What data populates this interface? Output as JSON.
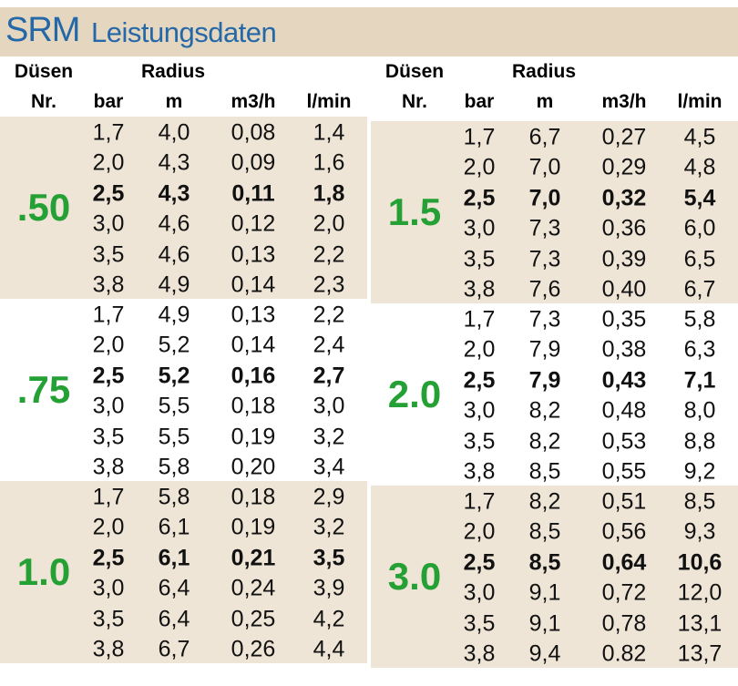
{
  "title": {
    "main": "SRM",
    "sub": "Leistungsdaten"
  },
  "panels": [
    {
      "header": {
        "duesen": "Düsen",
        "radius": "Radius",
        "nr": "Nr.",
        "bar": "bar",
        "m": "m",
        "m3h": "m3/h",
        "lmin": "l/min"
      },
      "groups": [
        {
          "nozzle": ".50",
          "rows": [
            [
              "1,7",
              "4,0",
              "0,08",
              "1,4"
            ],
            [
              "2,0",
              "4,3",
              "0,09",
              "1,6"
            ],
            [
              "2,5",
              "4,3",
              "0,11",
              "1,8"
            ],
            [
              "3,0",
              "4,6",
              "0,12",
              "2,0"
            ],
            [
              "3,5",
              "4,6",
              "0,13",
              "2,2"
            ],
            [
              "3,8",
              "4,9",
              "0,14",
              "2,3"
            ]
          ]
        },
        {
          "nozzle": ".75",
          "rows": [
            [
              "1,7",
              "4,9",
              "0,13",
              "2,2"
            ],
            [
              "2,0",
              "5,2",
              "0,14",
              "2,4"
            ],
            [
              "2,5",
              "5,2",
              "0,16",
              "2,7"
            ],
            [
              "3,0",
              "5,5",
              "0,18",
              "3,0"
            ],
            [
              "3,5",
              "5,5",
              "0,19",
              "3,2"
            ],
            [
              "3,8",
              "5,8",
              "0,20",
              "3,4"
            ]
          ]
        },
        {
          "nozzle": "1.0",
          "rows": [
            [
              "1,7",
              "5,8",
              "0,18",
              "2,9"
            ],
            [
              "2,0",
              "6,1",
              "0,19",
              "3,2"
            ],
            [
              "2,5",
              "6,1",
              "0,21",
              "3,5"
            ],
            [
              "3,0",
              "6,4",
              "0,24",
              "3,9"
            ],
            [
              "3,5",
              "6,4",
              "0,25",
              "4,2"
            ],
            [
              "3,8",
              "6,7",
              "0,26",
              "4,4"
            ]
          ]
        }
      ]
    },
    {
      "header": {
        "duesen": "Düsen",
        "radius": "Radius",
        "nr": "Nr.",
        "bar": "bar",
        "m": "m",
        "m3h": "m3/h",
        "lmin": "l/min"
      },
      "groups": [
        {
          "nozzle": "1.5",
          "rows": [
            [
              "1,7",
              "6,7",
              "0,27",
              "4,5"
            ],
            [
              "2,0",
              "7,0",
              "0,29",
              "4,8"
            ],
            [
              "2,5",
              "7,0",
              "0,32",
              "5,4"
            ],
            [
              "3,0",
              "7,3",
              "0,36",
              "6,0"
            ],
            [
              "3,5",
              "7,3",
              "0,39",
              "6,5"
            ],
            [
              "3,8",
              "7,6",
              "0,40",
              "6,7"
            ]
          ]
        },
        {
          "nozzle": "2.0",
          "rows": [
            [
              "1,7",
              "7,3",
              "0,35",
              "5,8"
            ],
            [
              "2,0",
              "7,9",
              "0,38",
              "6,3"
            ],
            [
              "2,5",
              "7,9",
              "0,43",
              "7,1"
            ],
            [
              "3,0",
              "8,2",
              "0,48",
              "8,0"
            ],
            [
              "3,5",
              "8,2",
              "0,53",
              "8,8"
            ],
            [
              "3,8",
              "8,5",
              "0,55",
              "9,2"
            ]
          ]
        },
        {
          "nozzle": "3.0",
          "rows": [
            [
              "1,7",
              "8,2",
              "0,51",
              "8,5"
            ],
            [
              "2,0",
              "8,5",
              "0,56",
              "9,3"
            ],
            [
              "2,5",
              "8,5",
              "0,64",
              "10,6"
            ],
            [
              "3,0",
              "9,1",
              "0,72",
              "12,0"
            ],
            [
              "3,5",
              "9,1",
              "0,78",
              "13,1"
            ],
            [
              "3,8",
              "9,4",
              "0.82",
              "13,7"
            ]
          ]
        }
      ]
    }
  ]
}
